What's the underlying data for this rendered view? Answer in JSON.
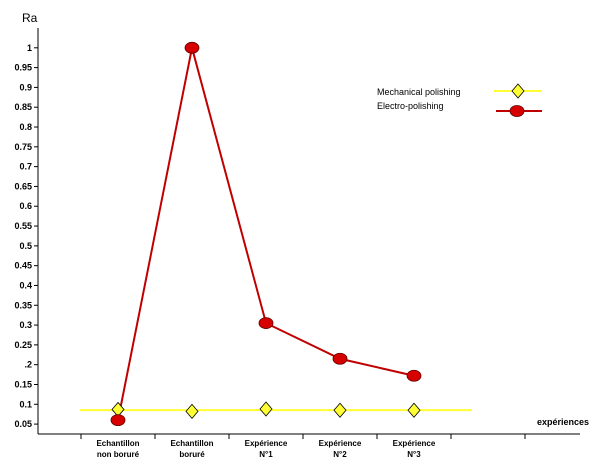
{
  "chart_data": {
    "type": "line",
    "ylabel": "Ra",
    "xlabel": "expériences",
    "ylim": [
      0.025,
      1.05
    ],
    "yticks": [
      0.05,
      0.1,
      0.15,
      0.2,
      0.25,
      0.3,
      0.35,
      0.4,
      0.45,
      0.5,
      0.55,
      0.6,
      0.65,
      0.7,
      0.75,
      0.8,
      0.85,
      0.9,
      0.95,
      1
    ],
    "ytick_labels": [
      "0.05",
      "0.1",
      "0.15",
      ".2",
      "0.25",
      "0.3",
      "0.35",
      "0.4",
      "0.45",
      "0.5",
      "0.55",
      "0.6",
      "0.65",
      "0.7",
      "0.75",
      "0.8",
      "0.85",
      "0.9",
      "0.95",
      "1"
    ],
    "categories": [
      [
        "Echantillon",
        "non boruré"
      ],
      [
        "Echantillon",
        "boruré"
      ],
      [
        "Expérience",
        "N°1"
      ],
      [
        "Expérience",
        "N°2"
      ],
      [
        "Expérience",
        "N°3"
      ]
    ],
    "grid": false,
    "legend": "top-right",
    "series": [
      {
        "name": "Mechanical polishing",
        "values": [
          0.087,
          0.082,
          0.088,
          0.085,
          0.085
        ],
        "color": "#ffff33",
        "marker": "diamond",
        "line_color": "#ffff33"
      },
      {
        "name": "Electro-polishing",
        "values": [
          0.06,
          1.0,
          0.305,
          0.215,
          0.172
        ],
        "color": "#d60000",
        "marker": "circle",
        "line_color": "#c00000"
      }
    ]
  }
}
